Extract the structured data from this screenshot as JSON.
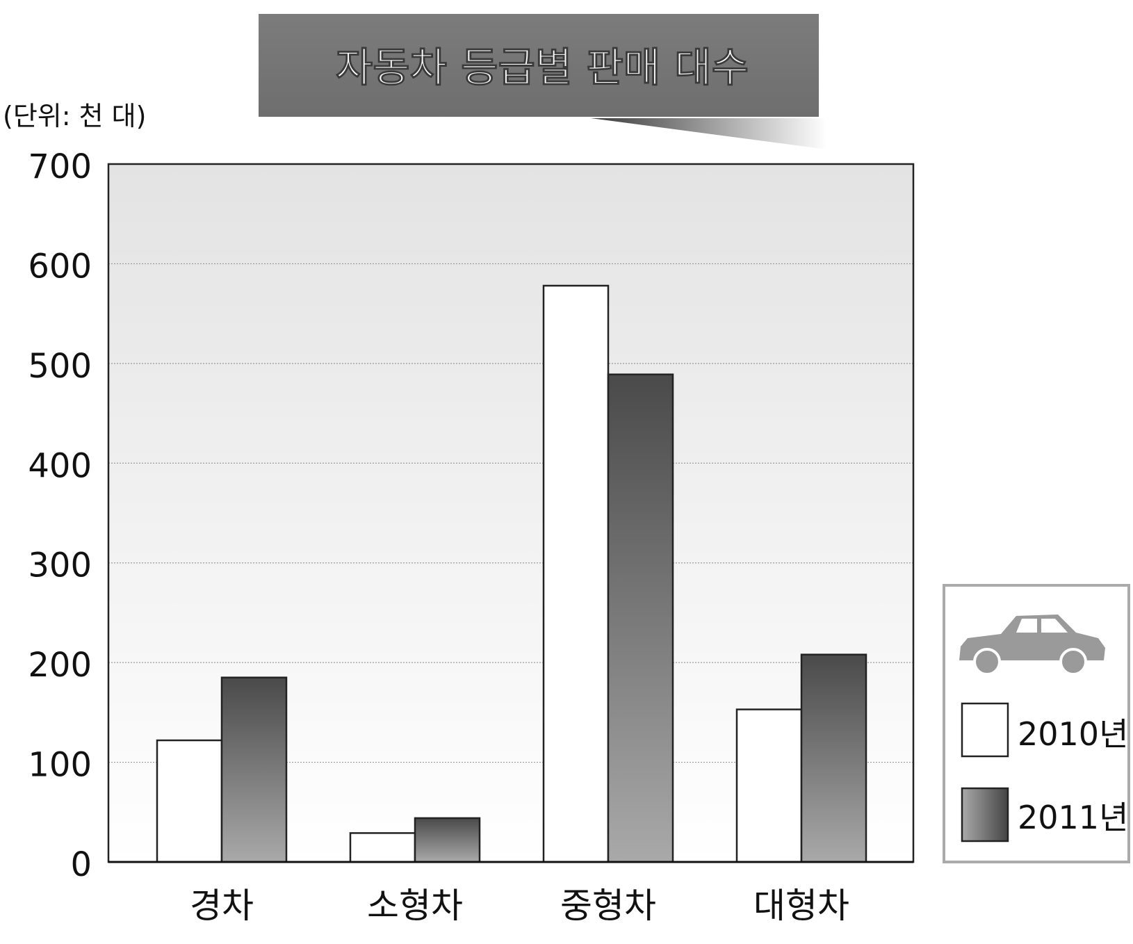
{
  "chart_data": {
    "type": "bar",
    "title": "자동차 등급별 판매 대수",
    "unit_label": "(단위: 천 대)",
    "categories": [
      "경차",
      "소형차",
      "중형차",
      "대형차"
    ],
    "series": [
      {
        "name": "2010년",
        "values": [
          122,
          29,
          578,
          153
        ],
        "color": "#ffffff"
      },
      {
        "name": "2011년",
        "values": [
          185,
          44,
          489,
          208
        ],
        "color": "#666666"
      }
    ],
    "ylim": [
      0,
      700
    ],
    "yticks": [
      "0",
      "100",
      "200",
      "300",
      "400",
      "500",
      "600",
      "700"
    ],
    "grid": true,
    "legend_position": "right",
    "legend_icon": "car-icon"
  }
}
